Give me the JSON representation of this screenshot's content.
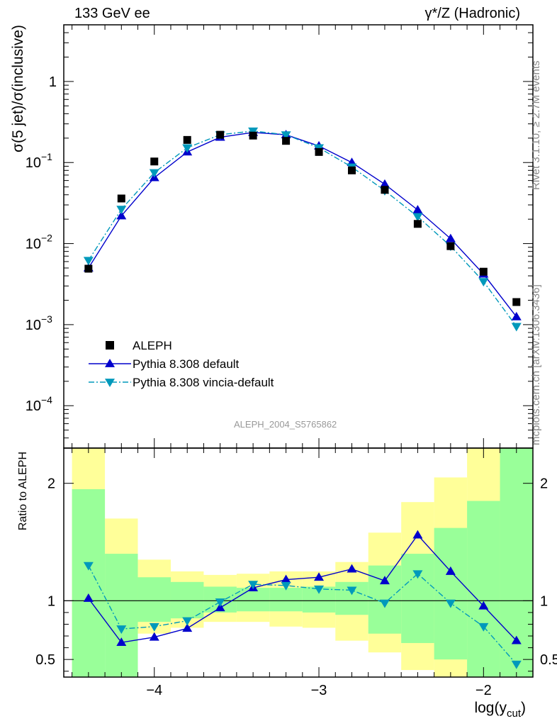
{
  "header": {
    "energy": "133 GeV ee",
    "process": "γ*/Z (Hadronic)"
  },
  "side_labels": {
    "version": "Rivet 3.1.10, ≥ 2.7M events",
    "source": "mcplots.cern.ch [arXiv:1306.3436]"
  },
  "analysis_id": "ALEPH_2004_S5765862",
  "colors": {
    "aleph": "#000000",
    "pythia_default": "#0000cc",
    "vincia": "#0099bb",
    "band_inner": "#99ff99",
    "band_outer": "#ffff99"
  },
  "chart_data": [
    {
      "type": "scatter",
      "panel": "main",
      "ylabel": "σ(5 jet)/σ(inclusive)",
      "xlabel": "",
      "yscale": "log",
      "xlim": [
        -4.55,
        -1.7
      ],
      "ylim": [
        3e-05,
        5
      ],
      "y_ticks": [
        {
          "value": 0.0001,
          "base": "10",
          "exp": "−4"
        },
        {
          "value": 0.001,
          "base": "10",
          "exp": "−3"
        },
        {
          "value": 0.01,
          "base": "10",
          "exp": "−2"
        },
        {
          "value": 0.1,
          "base": "10",
          "exp": "−1"
        },
        {
          "value": 1,
          "base": "1",
          "exp": ""
        }
      ],
      "legend_placement": "bottom-left",
      "x": [
        -4.4,
        -4.2,
        -4.0,
        -3.8,
        -3.6,
        -3.4,
        -3.2,
        -3.0,
        -2.8,
        -2.6,
        -2.4,
        -2.2,
        -2.0,
        -1.8
      ],
      "series": [
        {
          "name": "ALEPH",
          "style": "marker-square",
          "values": [
            0.0049,
            0.036,
            0.103,
            0.19,
            0.22,
            0.215,
            0.185,
            0.135,
            0.08,
            0.046,
            0.0175,
            0.0093,
            0.0045,
            0.0019
          ]
        },
        {
          "name": "Pythia 8.308 default",
          "style": "line-solid-triangle-up",
          "values": [
            0.005,
            0.022,
            0.065,
            0.135,
            0.205,
            0.235,
            0.22,
            0.16,
            0.1,
            0.054,
            0.026,
            0.0115,
            0.0042,
            0.00125
          ]
        },
        {
          "name": "Pythia 8.308 vincia-default",
          "style": "line-dashdot-triangle-down",
          "values": [
            0.0062,
            0.0265,
            0.075,
            0.152,
            0.22,
            0.245,
            0.22,
            0.152,
            0.088,
            0.045,
            0.0215,
            0.0093,
            0.0034,
            0.00095
          ]
        }
      ]
    },
    {
      "type": "line",
      "panel": "ratio",
      "ylabel": "Ratio to ALEPH",
      "xlabel": "log(ycut)",
      "xlabel_main": "log(y",
      "xlabel_sub": "cut",
      "xlabel_end": ")",
      "xlim": [
        -4.55,
        -1.7
      ],
      "ylim": [
        0.35,
        2.3
      ],
      "x_ticks": [
        "−4",
        "−3",
        "−2"
      ],
      "x_tick_values": [
        -4,
        -3,
        -2
      ],
      "y_ticks": [
        "0.5",
        "1",
        "2"
      ],
      "y_tick_values": [
        0.5,
        1,
        2
      ],
      "x": [
        -4.4,
        -4.2,
        -4.0,
        -3.8,
        -3.6,
        -3.4,
        -3.2,
        -3.0,
        -2.8,
        -2.6,
        -2.4,
        -2.2,
        -2.0,
        -1.8
      ],
      "bin_edges": [
        -4.5,
        -4.3,
        -4.1,
        -3.9,
        -3.7,
        -3.5,
        -3.3,
        -3.1,
        -2.9,
        -2.7,
        -2.5,
        -2.3,
        -2.1,
        -1.9,
        -1.7
      ],
      "band_inner": [
        [
          0.35,
          1.95
        ],
        [
          0.35,
          1.4
        ],
        [
          0.82,
          1.2
        ],
        [
          0.85,
          1.16
        ],
        [
          0.9,
          1.12
        ],
        [
          0.91,
          1.11
        ],
        [
          0.91,
          1.11
        ],
        [
          0.9,
          1.12
        ],
        [
          0.88,
          1.16
        ],
        [
          0.72,
          1.3
        ],
        [
          0.64,
          1.4
        ],
        [
          0.5,
          1.62
        ],
        [
          0.35,
          1.85
        ],
        [
          0.35,
          2.3
        ]
      ],
      "band_outer": [
        [
          0.35,
          2.3
        ],
        [
          0.72,
          1.7
        ],
        [
          0.72,
          1.35
        ],
        [
          0.77,
          1.25
        ],
        [
          0.82,
          1.22
        ],
        [
          0.82,
          1.23
        ],
        [
          0.78,
          1.25
        ],
        [
          0.77,
          1.25
        ],
        [
          0.66,
          1.33
        ],
        [
          0.56,
          1.58
        ],
        [
          0.41,
          1.84
        ],
        [
          0.35,
          2.05
        ],
        [
          0.35,
          2.3
        ],
        [
          0.35,
          2.3
        ]
      ],
      "series": [
        {
          "name": "Pythia 8.308 default",
          "style": "line-solid-triangle-up",
          "values": [
            1.02,
            0.645,
            0.69,
            0.765,
            0.94,
            1.11,
            1.18,
            1.2,
            1.27,
            1.17,
            1.56,
            1.25,
            0.955,
            0.66
          ]
        },
        {
          "name": "Pythia 8.308 vincia-default",
          "style": "line-dashdot-triangle-down",
          "values": [
            1.3,
            0.76,
            0.78,
            0.83,
            0.99,
            1.14,
            1.13,
            1.1,
            1.09,
            0.98,
            1.23,
            0.98,
            0.78,
            0.46
          ]
        }
      ]
    }
  ]
}
